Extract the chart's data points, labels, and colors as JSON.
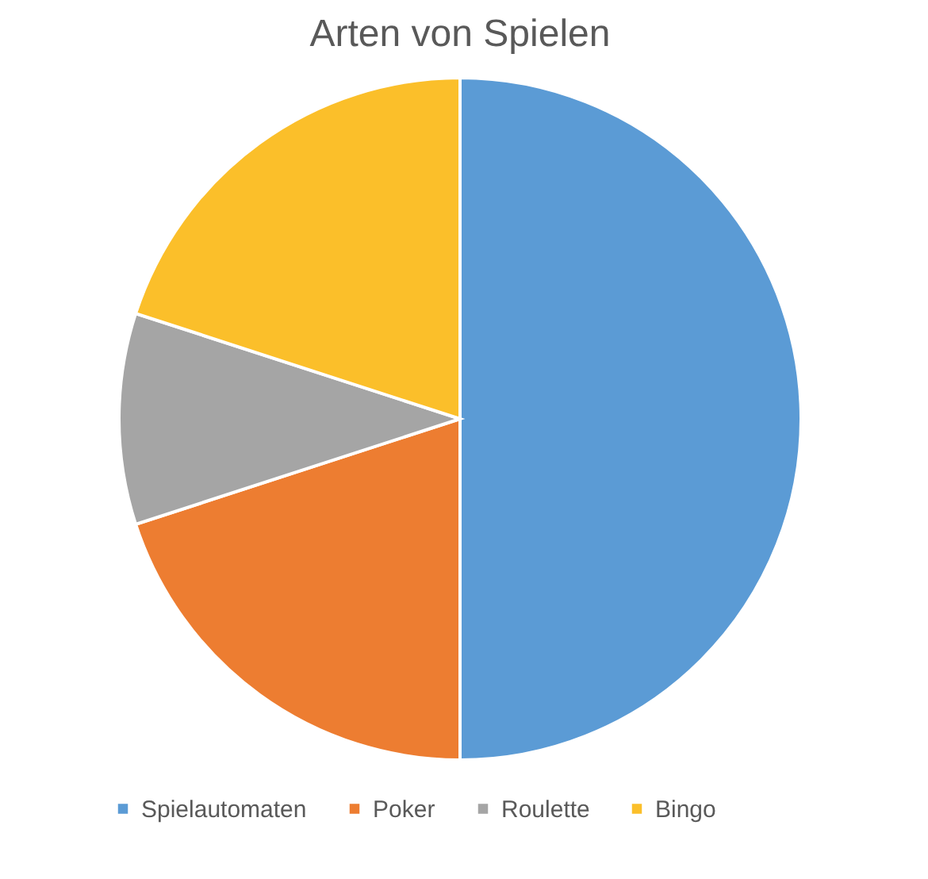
{
  "chart_data": {
    "type": "pie",
    "title": "Arten von Spielen",
    "categories": [
      "Spielautomaten",
      "Poker",
      "Roulette",
      "Bingo"
    ],
    "values": [
      50,
      20,
      10,
      20
    ],
    "colors": [
      "#5b9bd5",
      "#ed7d31",
      "#a5a5a5",
      "#fbbf2a"
    ],
    "legend": "bottom"
  }
}
